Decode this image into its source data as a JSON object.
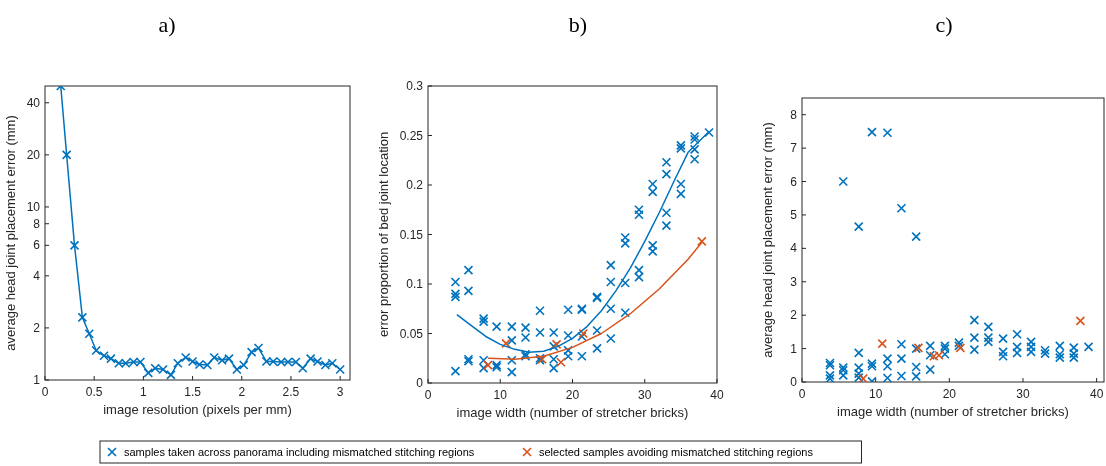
{
  "chart_data": [
    {
      "type": "line",
      "title": "a)",
      "xlabel": "image resolution (pixels per mm)",
      "ylabel": "average head joint placement error (mm)",
      "log": "y",
      "xlim": [
        0,
        3.1
      ],
      "xticks": [
        0,
        0.5,
        1,
        1.5,
        2,
        2.5,
        3
      ],
      "ylim": [
        1,
        50
      ],
      "yticks": [
        1,
        2,
        4,
        6,
        8,
        10,
        20,
        40
      ],
      "grid": false,
      "legend": false,
      "series": [
        {
          "color": "#0072bd",
          "marker": "cross",
          "x": [
            0.16,
            0.22,
            0.3,
            0.38,
            0.45,
            0.52,
            0.6,
            0.67,
            0.75,
            0.82,
            0.9,
            0.97,
            1.05,
            1.12,
            1.2,
            1.28,
            1.35,
            1.43,
            1.5,
            1.57,
            1.65,
            1.72,
            1.8,
            1.87,
            1.95,
            2.02,
            2.1,
            2.17,
            2.25,
            2.32,
            2.4,
            2.47,
            2.55,
            2.62,
            2.7,
            2.77,
            2.85,
            2.92,
            3.0
          ],
          "values": [
            50,
            20,
            6,
            2.3,
            1.85,
            1.48,
            1.38,
            1.33,
            1.25,
            1.25,
            1.27,
            1.27,
            1.1,
            1.17,
            1.15,
            1.07,
            1.25,
            1.35,
            1.28,
            1.23,
            1.22,
            1.35,
            1.3,
            1.33,
            1.15,
            1.22,
            1.45,
            1.53,
            1.28,
            1.28,
            1.27,
            1.27,
            1.27,
            1.17,
            1.33,
            1.28,
            1.22,
            1.25,
            1.15
          ]
        }
      ]
    },
    {
      "type": "scatter",
      "title": "b)",
      "xlabel": "image width (number of stretcher bricks)",
      "ylabel": "error proportion of bed joint location",
      "xlim": [
        0,
        40
      ],
      "xticks": [
        0,
        10,
        20,
        30,
        40
      ],
      "ylim": [
        0,
        0.3
      ],
      "yticks": [
        0,
        0.05,
        0.1,
        0.15,
        0.2,
        0.25,
        0.3
      ],
      "grid": false,
      "legend": "bottom",
      "marker": "cross",
      "series": [
        {
          "name": "samples taken across panorama including mismatched stitching regions",
          "color": "#0072bd",
          "x": [
            3.8,
            3.8,
            3.8,
            3.8,
            5.6,
            5.6,
            5.6,
            5.6,
            7.7,
            7.7,
            7.7,
            7.7,
            9.5,
            9.5,
            9.5,
            11.6,
            11.6,
            11.6,
            11.6,
            13.5,
            13.5,
            13.5,
            13.5,
            15.5,
            15.5,
            15.5,
            15.5,
            17.4,
            17.4,
            17.4,
            17.4,
            19.4,
            19.4,
            19.4,
            19.4,
            21.3,
            21.3,
            21.3,
            21.3,
            23.4,
            23.4,
            23.4,
            23.4,
            25.3,
            25.3,
            25.3,
            25.3,
            27.3,
            27.3,
            27.3,
            27.3,
            29.2,
            29.2,
            29.2,
            29.2,
            31.1,
            31.1,
            31.1,
            31.1,
            33,
            33,
            33,
            33,
            35,
            35,
            35,
            35,
            36.9,
            36.9,
            36.9,
            36.9,
            38.9
          ],
          "values": [
            0.102,
            0.09,
            0.087,
            0.012,
            0.114,
            0.093,
            0.024,
            0.022,
            0.065,
            0.062,
            0.023,
            0.015,
            0.057,
            0.018,
            0.016,
            0.057,
            0.043,
            0.023,
            0.011,
            0.056,
            0.046,
            0.029,
            0.027,
            0.073,
            0.051,
            0.025,
            0.023,
            0.051,
            0.037,
            0.024,
            0.015,
            0.074,
            0.048,
            0.033,
            0.027,
            0.075,
            0.074,
            0.047,
            0.027,
            0.087,
            0.086,
            0.053,
            0.035,
            0.119,
            0.102,
            0.075,
            0.045,
            0.147,
            0.141,
            0.101,
            0.071,
            0.175,
            0.17,
            0.114,
            0.107,
            0.201,
            0.193,
            0.139,
            0.133,
            0.223,
            0.211,
            0.172,
            0.159,
            0.24,
            0.237,
            0.201,
            0.191,
            0.249,
            0.246,
            0.236,
            0.226,
            0.253
          ]
        },
        {
          "name": "selected samples avoiding mismatched stitching regions",
          "color": "#d95319",
          "x": [
            8.3,
            10.8,
            15.8,
            17.8,
            18.4,
            21.5,
            37.9
          ],
          "values": [
            0.018,
            0.04,
            0.024,
            0.039,
            0.021,
            0.05,
            0.143
          ]
        },
        {
          "type": "line",
          "marker": "none",
          "color": "#0072bd",
          "x": [
            4,
            6,
            8,
            10,
            12,
            14,
            16,
            18,
            20,
            22,
            24,
            26,
            28,
            30,
            32,
            34,
            36,
            38.9
          ],
          "values": [
            0.069,
            0.058,
            0.047,
            0.039,
            0.034,
            0.031,
            0.032,
            0.037,
            0.045,
            0.057,
            0.073,
            0.093,
            0.116,
            0.143,
            0.172,
            0.203,
            0.233,
            0.254
          ]
        },
        {
          "type": "line",
          "marker": "none",
          "color": "#d95319",
          "x": [
            8.3,
            12,
            16,
            20,
            24,
            28,
            32,
            36,
            38
          ],
          "values": [
            0.025,
            0.024,
            0.027,
            0.036,
            0.05,
            0.07,
            0.095,
            0.125,
            0.143
          ]
        }
      ]
    },
    {
      "type": "scatter",
      "title": "c)",
      "xlabel": "image width (number of stretcher bricks)",
      "ylabel": "average head joint placement error (mm)",
      "xlim": [
        0,
        41
      ],
      "xticks": [
        0,
        10,
        20,
        30,
        40
      ],
      "ylim": [
        0,
        8.5
      ],
      "yticks": [
        0,
        1,
        2,
        3,
        4,
        5,
        6,
        7,
        8
      ],
      "grid": false,
      "legend": false,
      "marker": "cross",
      "series": [
        {
          "color": "#0072bd",
          "x": [
            3.8,
            3.8,
            3.8,
            3.8,
            5.6,
            5.6,
            5.6,
            5.6,
            7.7,
            7.7,
            7.7,
            7.7,
            7.7,
            9.5,
            9.5,
            9.5,
            9.5,
            11.6,
            11.6,
            11.6,
            11.6,
            13.5,
            13.5,
            13.5,
            13.5,
            15.5,
            15.5,
            15.5,
            15.5,
            17.4,
            17.4,
            17.4,
            19.4,
            19.4,
            19.4,
            21.3,
            21.3,
            23.4,
            23.4,
            23.4,
            25.3,
            25.3,
            25.3,
            27.3,
            27.3,
            27.3,
            29.2,
            29.2,
            29.2,
            31.1,
            31.1,
            31.1,
            33,
            33,
            35,
            35,
            35,
            36.9,
            36.9,
            36.9,
            38.9
          ],
          "values": [
            0.57,
            0.5,
            0.2,
            0.1,
            6.0,
            0.43,
            0.35,
            0.2,
            4.65,
            0.87,
            0.43,
            0.25,
            0.13,
            7.48,
            0.55,
            0.47,
            0.02,
            7.46,
            0.7,
            0.47,
            0.12,
            5.2,
            1.13,
            0.7,
            0.18,
            4.35,
            1.0,
            0.45,
            0.17,
            1.08,
            0.8,
            0.37,
            1.08,
            1.0,
            0.83,
            1.18,
            1.08,
            1.85,
            1.33,
            0.97,
            1.65,
            1.33,
            1.2,
            1.3,
            0.9,
            0.77,
            1.43,
            1.05,
            0.87,
            1.2,
            1.05,
            0.9,
            0.95,
            0.85,
            1.08,
            0.83,
            0.73,
            1.03,
            0.85,
            0.73,
            1.05
          ]
        },
        {
          "color": "#d95319",
          "x": [
            8.3,
            10.9,
            15.8,
            17.9,
            18.6,
            21.5,
            37.8
          ],
          "values": [
            0.1,
            1.15,
            1.02,
            0.77,
            0.8,
            1.02,
            1.83
          ]
        }
      ]
    }
  ]
}
